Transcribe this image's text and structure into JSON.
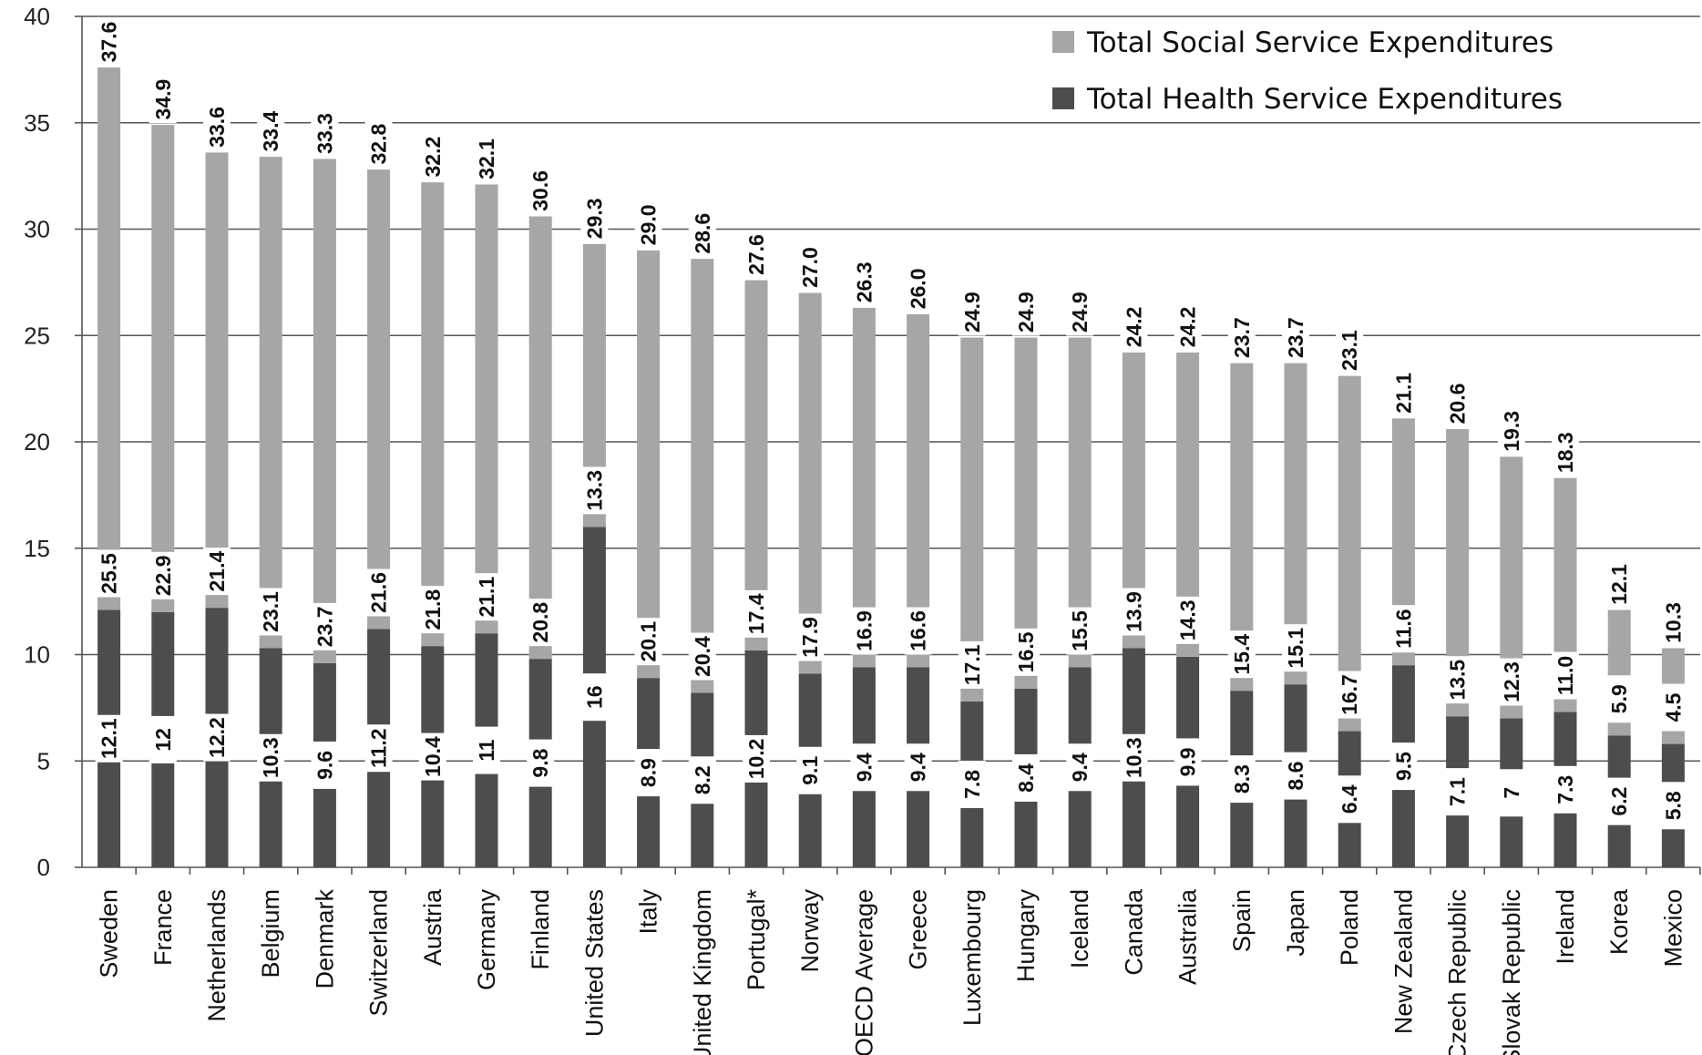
{
  "chart_data": {
    "type": "bar",
    "stacked": true,
    "categories": [
      "Sweden",
      "France",
      "Netherlands",
      "Belgium",
      "Denmark",
      "Switzerland",
      "Austria",
      "Germany",
      "Finland",
      "United States",
      "Italy",
      "United Kingdom",
      "Portugal*",
      "Norway",
      "OECD Average",
      "Greece",
      "Luxembourg",
      "Hungary",
      "Iceland",
      "Canada",
      "Australia",
      "Spain",
      "Japan",
      "Poland",
      "New Zealand",
      "Czech Republic",
      "Slovak Republic",
      "Ireland",
      "Korea",
      "Mexico"
    ],
    "series": [
      {
        "name": "Total Health Service Expenditures",
        "color": "#4d4d4d",
        "values": [
          12.1,
          12,
          12.2,
          10.3,
          9.6,
          11.2,
          10.4,
          11,
          9.8,
          16,
          8.9,
          8.2,
          10.2,
          9.1,
          9.4,
          9.4,
          7.8,
          8.4,
          9.4,
          10.3,
          9.9,
          8.3,
          8.6,
          6.4,
          9.5,
          7.1,
          7,
          7.3,
          6.2,
          5.8
        ],
        "labels": [
          "12.1",
          "12",
          "12.2",
          "10.3",
          "9.6",
          "11.2",
          "10.4",
          "11",
          "9.8",
          "16",
          "8.9",
          "8.2",
          "10.2",
          "9.1",
          "9.4",
          "9.4",
          "7.8",
          "8.4",
          "9.4",
          "10.3",
          "9.9",
          "8.3",
          "8.6",
          "6.4",
          "9.5",
          "7.1",
          "7",
          "7.3",
          "6.2",
          "5.8"
        ]
      },
      {
        "name": "Total Social Service Expenditures",
        "color": "#a6a6a6",
        "values": [
          25.5,
          22.9,
          21.4,
          23.1,
          23.7,
          21.6,
          21.8,
          21.1,
          20.8,
          13.3,
          20.1,
          20.4,
          17.4,
          17.9,
          16.9,
          16.6,
          17.1,
          16.5,
          15.5,
          13.9,
          14.3,
          15.4,
          15.1,
          16.7,
          11.6,
          13.5,
          12.3,
          11.0,
          5.9,
          4.5
        ],
        "labels": [
          "25.5",
          "22.9",
          "21.4",
          "23.1",
          "23.7",
          "21.6",
          "21.8",
          "21.1",
          "20.8",
          "13.3",
          "20.1",
          "20.4",
          "17.4",
          "17.9",
          "16.9",
          "16.6",
          "17.1",
          "16.5",
          "15.5",
          "13.9",
          "14.3",
          "15.4",
          "15.1",
          "16.7",
          "11.6",
          "13.5",
          "12.3",
          "11.0",
          "5.9",
          "4.5"
        ]
      }
    ],
    "totals": [
      37.6,
      34.9,
      33.6,
      33.4,
      33.3,
      32.8,
      32.2,
      32.1,
      30.6,
      29.3,
      29.0,
      28.6,
      27.6,
      27.0,
      26.3,
      26.0,
      24.9,
      24.9,
      24.9,
      24.2,
      24.2,
      23.7,
      23.7,
      23.1,
      21.1,
      20.6,
      19.3,
      18.3,
      12.1,
      10.3
    ],
    "total_labels": [
      "37.6",
      "34.9",
      "33.6",
      "33.4",
      "33.3",
      "32.8",
      "32.2",
      "32.1",
      "30.6",
      "29.3",
      "29.0",
      "28.6",
      "27.6",
      "27.0",
      "26.3",
      "26.0",
      "24.9",
      "24.9",
      "24.9",
      "24.2",
      "24.2",
      "23.7",
      "23.7",
      "23.1",
      "21.1",
      "20.6",
      "19.3",
      "18.3",
      "12.1",
      "10.3"
    ],
    "yticks": [
      "0",
      "5",
      "10",
      "15",
      "20",
      "25",
      "30",
      "35",
      "40"
    ],
    "ylim": [
      0,
      40
    ],
    "grid": true,
    "legend": {
      "position": "top-right",
      "items": [
        {
          "name": "Total Social Service Expenditures",
          "color": "#a6a6a6"
        },
        {
          "name": "Total Health Service Expenditures",
          "color": "#4d4d4d"
        }
      ]
    }
  }
}
